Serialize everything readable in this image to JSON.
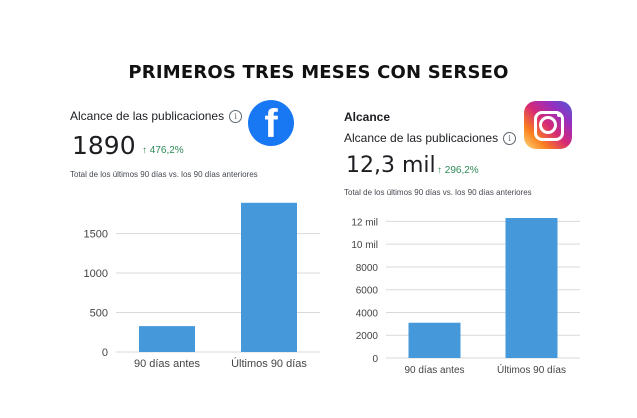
{
  "header": {
    "title": "PRIMEROS TRES MESES CON SERSEO"
  },
  "facebook": {
    "logo_icon": "facebook-icon",
    "metric_label": "Alcance de las publicaciones",
    "info_icon": "info-icon",
    "value": "1890",
    "delta": "↑ 476,2%",
    "subtext": "Total de los últimos 90 días vs. los 90 días anteriores"
  },
  "instagram": {
    "logo_icon": "instagram-icon",
    "heading": "Alcance",
    "metric_label": "Alcance de las publicaciones",
    "info_icon": "info-icon",
    "value": "12,3 mil",
    "delta": "↑ 296,2%",
    "subtext": "Total de los últimos 90 días vs. los 90 días anteriores"
  },
  "colors": {
    "bar": "#4598d9",
    "delta": "#2e8b57",
    "facebook": "#1877f2"
  },
  "chart_data": [
    {
      "type": "bar",
      "title": "",
      "xlabel": "",
      "ylabel": "",
      "categories": [
        "90 días antes",
        "Últimos 90 días"
      ],
      "values": [
        328,
        1890
      ],
      "yticks": [
        0,
        500,
        1000,
        1500
      ],
      "ytick_labels": [
        "0",
        "500",
        "1000",
        "1500"
      ],
      "ylim": [
        0,
        1900
      ],
      "grid": true
    },
    {
      "type": "bar",
      "title": "",
      "xlabel": "",
      "ylabel": "",
      "categories": [
        "90 días antes",
        "Últimos 90 días"
      ],
      "values": [
        3100,
        12300
      ],
      "yticks": [
        0,
        2000,
        4000,
        6000,
        8000,
        10000,
        12000
      ],
      "ytick_labels": [
        "0",
        "2000",
        "4000",
        "6000",
        "8000",
        "10 mil",
        "12 mil"
      ],
      "ylim": [
        0,
        12300
      ],
      "grid": true
    }
  ]
}
